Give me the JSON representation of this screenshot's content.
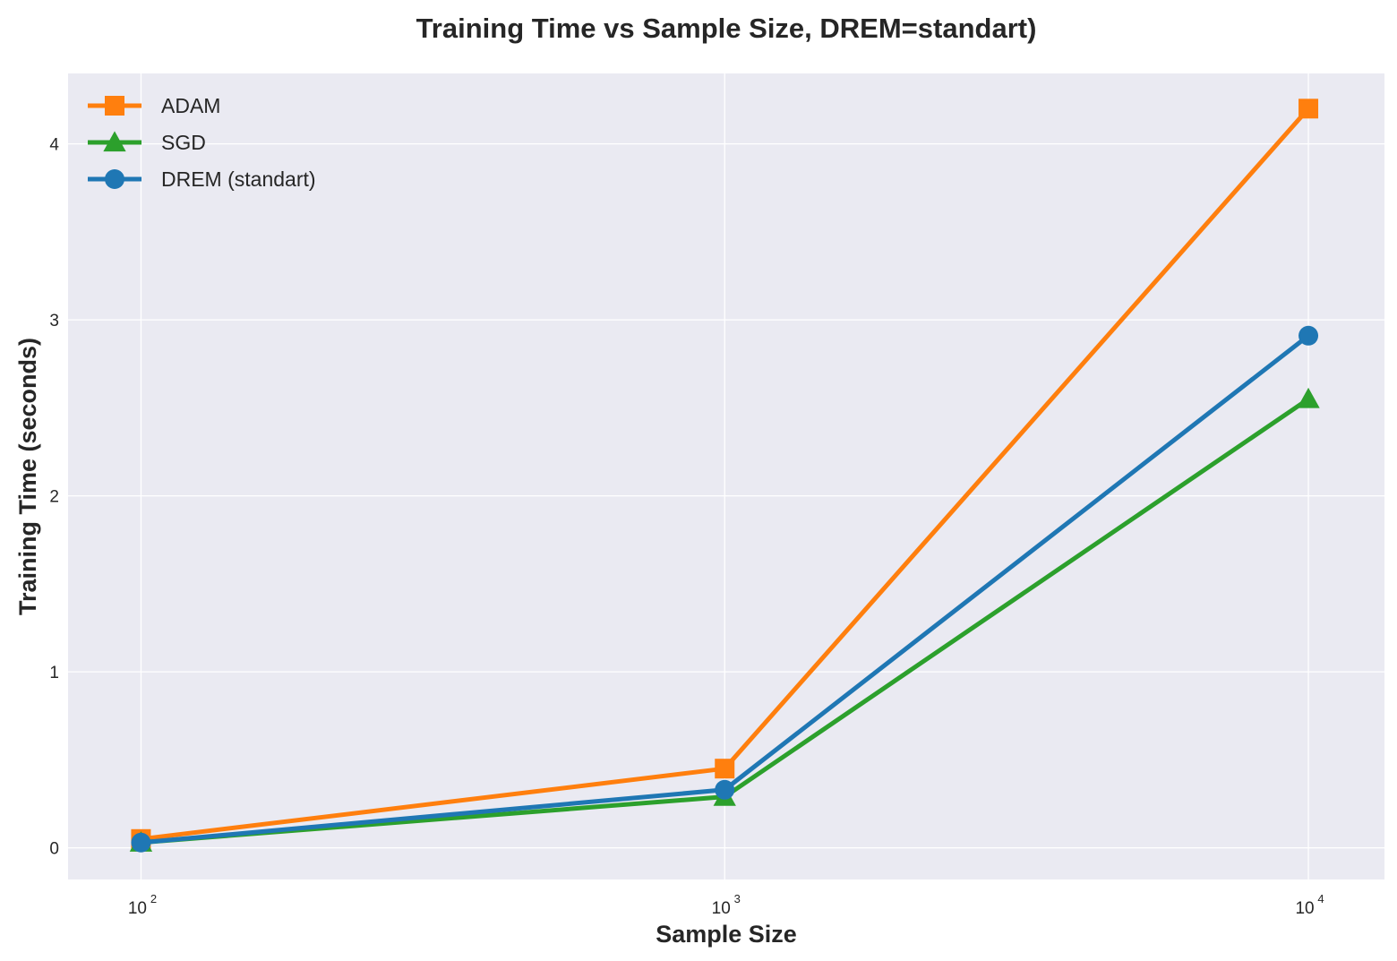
{
  "chart_data": {
    "type": "line",
    "title": "Training Time vs Sample Size, DREM=standart)",
    "xlabel": "Sample Size",
    "ylabel": "Training Time (seconds)",
    "x_scale": "log",
    "x": [
      100,
      1000,
      10000
    ],
    "x_ticks": [
      {
        "base": "10",
        "exp": "2"
      },
      {
        "base": "10",
        "exp": "3"
      },
      {
        "base": "10",
        "exp": "4"
      }
    ],
    "y_ticks": [
      "0",
      "1",
      "2",
      "3",
      "4"
    ],
    "xlim": [
      75,
      13500
    ],
    "ylim": [
      -0.18,
      4.4
    ],
    "grid": true,
    "legend_position": "top-left",
    "series": [
      {
        "name": "ADAM",
        "values": [
          0.05,
          0.45,
          4.2
        ],
        "color": "#ff7f0e",
        "marker": "square"
      },
      {
        "name": "SGD",
        "values": [
          0.03,
          0.29,
          2.55
        ],
        "color": "#2ca02c",
        "marker": "triangle"
      },
      {
        "name": "DREM (standart)",
        "values": [
          0.03,
          0.33,
          2.91
        ],
        "color": "#1f77b4",
        "marker": "circle"
      }
    ]
  }
}
